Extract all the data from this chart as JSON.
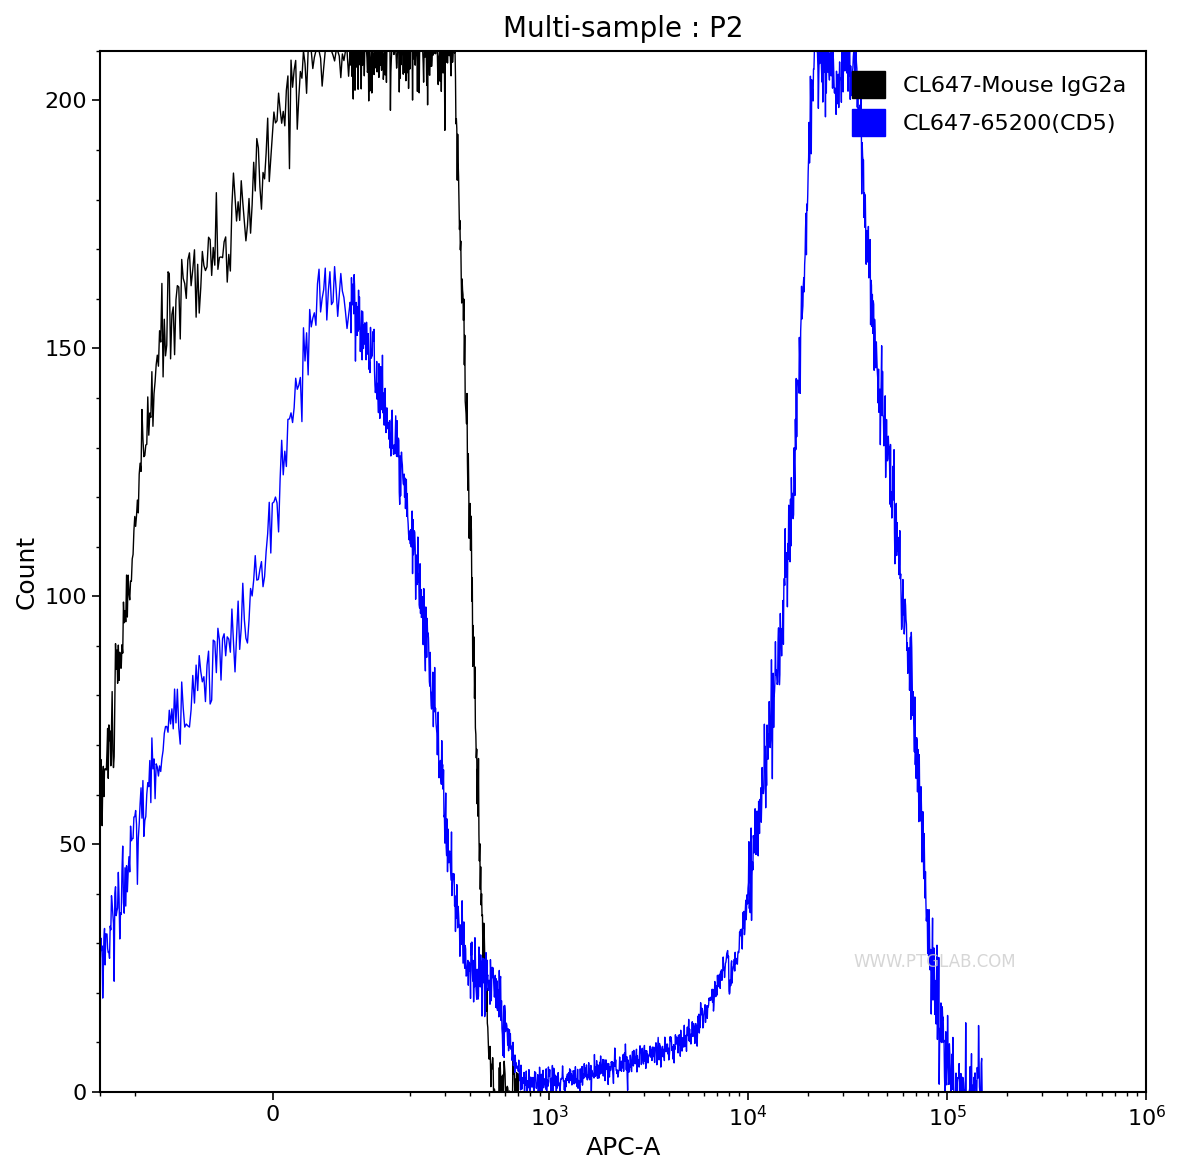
{
  "title": "Multi-sample : P2",
  "xlabel": "APC-A",
  "ylabel": "Count",
  "ylim": [
    0,
    210
  ],
  "yticks": [
    0,
    50,
    100,
    150,
    200
  ],
  "background_color": "#ffffff",
  "line_color_black": "#000000",
  "line_color_blue": "#0000ff",
  "legend_labels": [
    "CL647-Mouse IgG2a",
    "CL647-65200(CD5)"
  ],
  "legend_colors": [
    "#000000",
    "#0000ff"
  ],
  "title_fontsize": 20,
  "axis_label_fontsize": 18,
  "tick_fontsize": 16,
  "legend_fontsize": 16,
  "linthresh": 100,
  "linscale": 0.35,
  "xlim_left": -300,
  "xlim_right": 1000000,
  "watermark": "WWW.PTGLAB.COM"
}
